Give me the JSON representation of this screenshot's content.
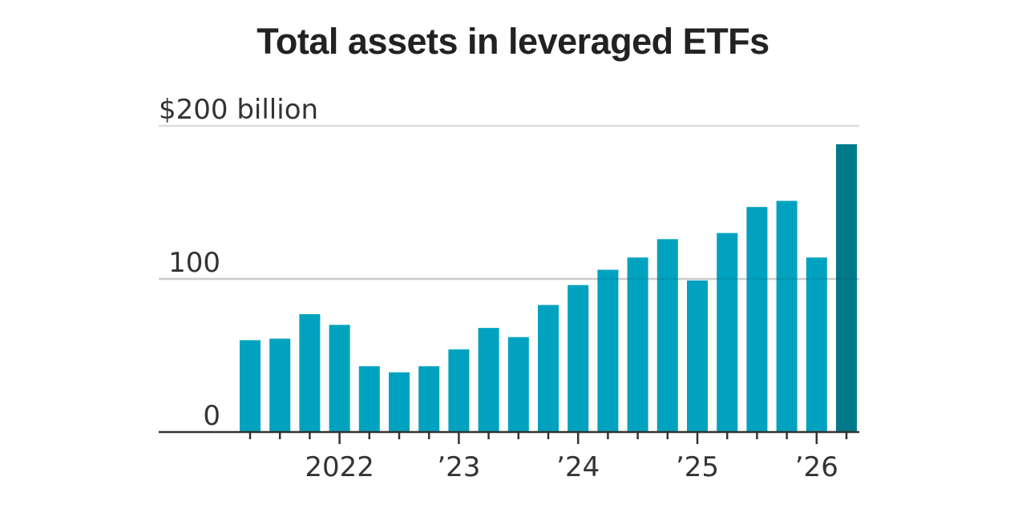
{
  "chart_data": {
    "type": "bar",
    "title": "Total assets in leveraged ETFs",
    "ylabel": "",
    "xlabel": "",
    "ylim": [
      0,
      200
    ],
    "y_ticks": [
      {
        "value": 0,
        "label": "0"
      },
      {
        "value": 100,
        "label": "100"
      },
      {
        "value": 200,
        "label": "$200 billion"
      }
    ],
    "x_tick_labels": [
      {
        "index": 3,
        "label": "2022"
      },
      {
        "index": 7,
        "label": "’23"
      },
      {
        "index": 11,
        "label": "’24"
      },
      {
        "index": 15,
        "label": "’25"
      },
      {
        "index": 19,
        "label": "’26"
      }
    ],
    "grid": true,
    "colors": {
      "bar": "#00a2bf",
      "highlight": "#007a8a",
      "grid": "#dddddd",
      "axis": "#333333"
    },
    "highlight_index": 20,
    "values": [
      60,
      61,
      77,
      70,
      43,
      39,
      43,
      54,
      68,
      62,
      83,
      96,
      106,
      114,
      126,
      99,
      130,
      147,
      151,
      114,
      188
    ]
  }
}
